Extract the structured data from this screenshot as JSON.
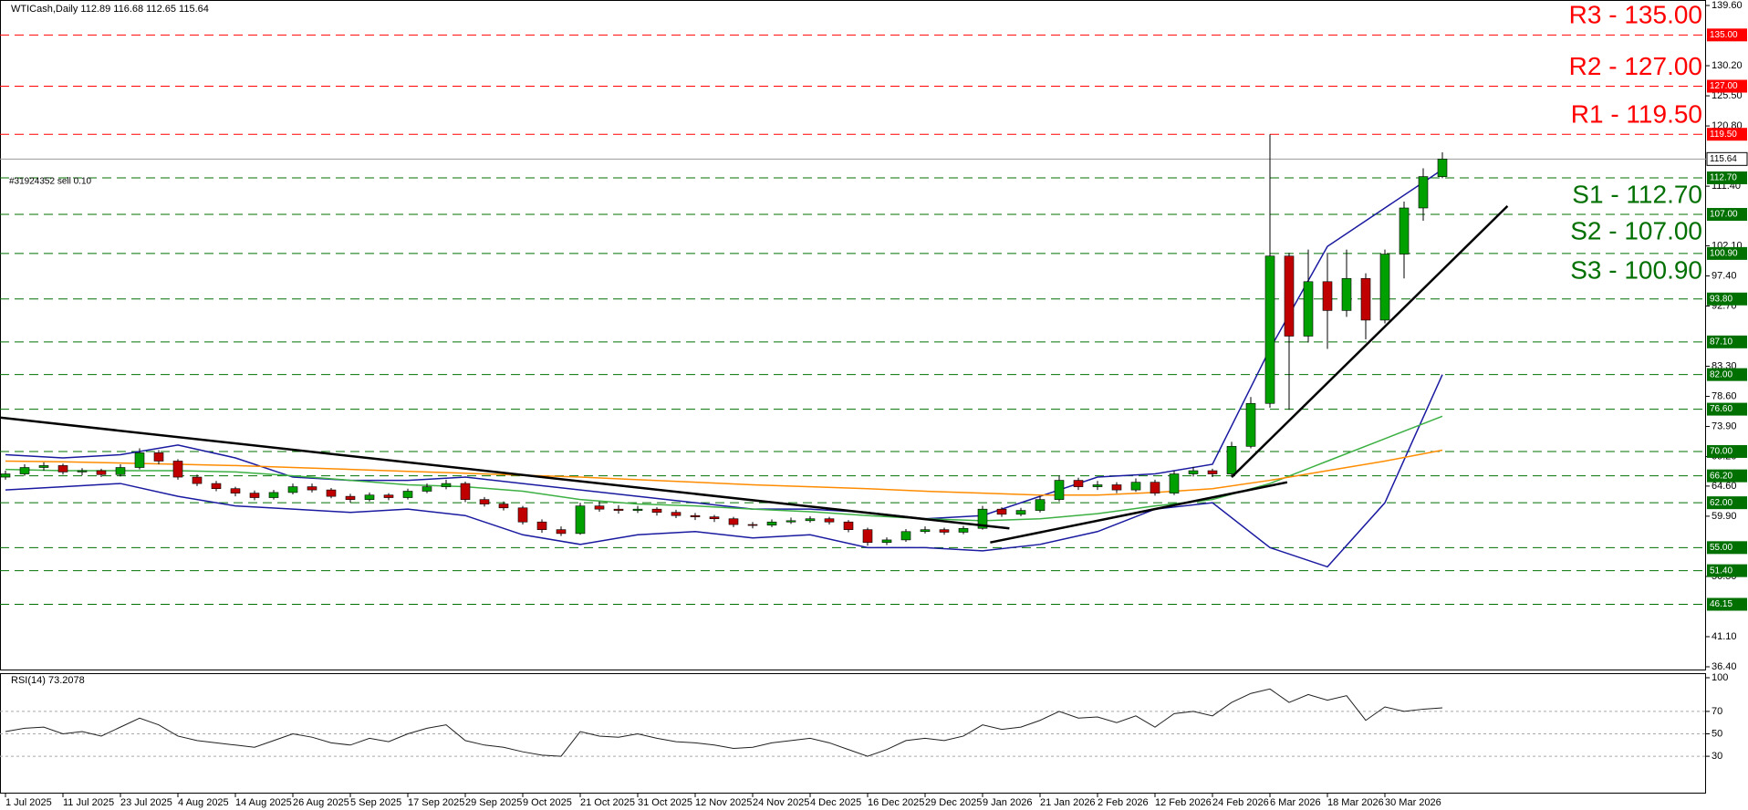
{
  "header": "WTICash,Daily  112.89 116.68 112.65 115.64",
  "chart_data": {
    "type": "candlestick",
    "categories": [
      "1 Jul 2025",
      null,
      null,
      "11 Jul 2025",
      null,
      null,
      "23 Jul 2025",
      null,
      null,
      "4 Aug 2025",
      null,
      null,
      "14 Aug 2025",
      null,
      null,
      "26 Aug 2025",
      null,
      null,
      "5 Sep 2025",
      null,
      null,
      "17 Sep 2025",
      null,
      null,
      "29 Sep 2025",
      null,
      null,
      "9 Oct 2025",
      null,
      null,
      "21 Oct 2025",
      null,
      null,
      "31 Oct 2025",
      null,
      null,
      "12 Nov 2025",
      null,
      null,
      "24 Nov 2025",
      null,
      null,
      "4 Dec 2025",
      null,
      null,
      "16 Dec 2025",
      null,
      null,
      "29 Dec 2025",
      null,
      null,
      "9 Jan 2026",
      null,
      null,
      "21 Jan 2026",
      null,
      null,
      "2 Feb 2026",
      null,
      null,
      "12 Feb 2026",
      null,
      null,
      "24 Feb 2026",
      null,
      null,
      "6 Mar 2026",
      null,
      null,
      "18 Mar 2026",
      null,
      null,
      "30 Mar 2026",
      null,
      null,
      null
    ],
    "ohlc": [
      [
        66.0,
        67.0,
        65.6,
        66.5
      ],
      [
        66.5,
        68.0,
        66.2,
        67.5
      ],
      [
        67.5,
        68.3,
        67.0,
        67.8
      ],
      [
        67.8,
        68.1,
        66.4,
        66.8
      ],
      [
        66.8,
        67.4,
        66.3,
        67.0
      ],
      [
        67.0,
        67.3,
        66.0,
        66.4
      ],
      [
        66.4,
        68.0,
        66.1,
        67.5
      ],
      [
        67.5,
        70.5,
        67.2,
        69.8
      ],
      [
        69.8,
        70.2,
        68.0,
        68.5
      ],
      [
        68.5,
        68.8,
        65.6,
        66.0
      ],
      [
        66.0,
        66.4,
        64.6,
        65.0
      ],
      [
        65.0,
        65.4,
        63.8,
        64.2
      ],
      [
        64.2,
        64.5,
        63.0,
        63.5
      ],
      [
        63.5,
        63.9,
        62.4,
        62.8
      ],
      [
        62.8,
        64.0,
        62.5,
        63.6
      ],
      [
        63.6,
        65.0,
        63.3,
        64.5
      ],
      [
        64.5,
        65.0,
        63.6,
        64.0
      ],
      [
        64.0,
        64.3,
        62.7,
        63.0
      ],
      [
        63.0,
        63.4,
        62.0,
        62.5
      ],
      [
        62.5,
        63.6,
        62.2,
        63.2
      ],
      [
        63.2,
        63.5,
        62.4,
        62.8
      ],
      [
        62.8,
        64.2,
        62.5,
        63.8
      ],
      [
        63.8,
        65.0,
        63.5,
        64.5
      ],
      [
        64.5,
        65.6,
        64.1,
        65.0
      ],
      [
        65.0,
        65.3,
        62.1,
        62.5
      ],
      [
        62.5,
        62.9,
        61.4,
        61.8
      ],
      [
        61.8,
        62.2,
        60.8,
        61.2
      ],
      [
        61.2,
        61.5,
        58.6,
        59.0
      ],
      [
        59.0,
        59.4,
        57.3,
        57.8
      ],
      [
        57.8,
        58.3,
        56.8,
        57.2
      ],
      [
        57.2,
        62.0,
        57.0,
        61.5
      ],
      [
        61.5,
        62.2,
        60.6,
        61.0
      ],
      [
        61.0,
        61.6,
        60.3,
        60.8
      ],
      [
        60.8,
        61.5,
        60.4,
        61.0
      ],
      [
        61.0,
        61.3,
        60.0,
        60.5
      ],
      [
        60.5,
        60.9,
        59.6,
        60.0
      ],
      [
        60.0,
        60.4,
        59.3,
        59.8
      ],
      [
        59.8,
        60.1,
        59.0,
        59.5
      ],
      [
        59.5,
        59.8,
        58.2,
        58.6
      ],
      [
        58.6,
        59.0,
        58.0,
        58.5
      ],
      [
        58.5,
        59.4,
        58.2,
        59.0
      ],
      [
        59.0,
        59.7,
        58.7,
        59.2
      ],
      [
        59.2,
        59.9,
        58.9,
        59.5
      ],
      [
        59.5,
        59.8,
        58.6,
        59.0
      ],
      [
        59.0,
        59.3,
        57.4,
        57.8
      ],
      [
        57.8,
        58.1,
        55.3,
        55.8
      ],
      [
        55.8,
        56.6,
        55.4,
        56.2
      ],
      [
        56.2,
        57.9,
        55.9,
        57.5
      ],
      [
        57.5,
        58.3,
        57.2,
        57.8
      ],
      [
        57.8,
        58.1,
        57.0,
        57.4
      ],
      [
        57.4,
        58.4,
        57.1,
        58.0
      ],
      [
        58.0,
        61.5,
        57.8,
        61.0
      ],
      [
        61.0,
        61.3,
        59.8,
        60.2
      ],
      [
        60.2,
        61.2,
        59.9,
        60.8
      ],
      [
        60.8,
        63.0,
        60.5,
        62.5
      ],
      [
        62.5,
        66.2,
        62.2,
        65.5
      ],
      [
        65.5,
        65.9,
        64.0,
        64.5
      ],
      [
        64.5,
        65.4,
        64.0,
        64.8
      ],
      [
        64.8,
        65.2,
        63.5,
        64.0
      ],
      [
        64.0,
        65.8,
        63.7,
        65.2
      ],
      [
        65.2,
        65.6,
        63.1,
        63.5
      ],
      [
        63.5,
        67.0,
        63.2,
        66.5
      ],
      [
        66.5,
        67.6,
        66.1,
        67.0
      ],
      [
        67.0,
        67.3,
        66.0,
        66.5
      ],
      [
        66.5,
        71.5,
        66.2,
        70.8
      ],
      [
        70.8,
        78.5,
        70.5,
        77.5
      ],
      [
        77.5,
        119.5,
        76.8,
        100.5
      ],
      [
        100.5,
        101.0,
        76.5,
        88.0
      ],
      [
        88.0,
        101.5,
        87.0,
        96.5
      ],
      [
        96.5,
        101.0,
        86.0,
        92.0
      ],
      [
        92.0,
        101.5,
        91.0,
        97.0
      ],
      [
        97.0,
        97.8,
        87.5,
        90.5
      ],
      [
        90.5,
        101.5,
        90.0,
        100.8
      ],
      [
        100.8,
        109.0,
        97.0,
        108.0
      ],
      [
        108.0,
        114.2,
        106.0,
        112.9
      ],
      [
        112.89,
        116.68,
        112.65,
        115.64
      ]
    ],
    "colors": {
      "up": "#00a000",
      "down": "#c00000"
    },
    "ylim": [
      36.4,
      139.6
    ],
    "yticks": [
      {
        "value": 139.6,
        "label": "139.60"
      },
      {
        "value": 130.2,
        "label": "130.20"
      },
      {
        "value": 125.5,
        "label": "125.50"
      },
      {
        "value": 120.8,
        "label": "120.80"
      },
      {
        "value": 111.4,
        "label": "111.40"
      },
      {
        "value": 102.1,
        "label": "102.10"
      },
      {
        "value": 97.4,
        "label": "97.40"
      },
      {
        "value": 92.7,
        "label": "92.70"
      },
      {
        "value": 83.3,
        "label": "83.30"
      },
      {
        "value": 78.6,
        "label": "78.60"
      },
      {
        "value": 73.9,
        "label": "73.90"
      },
      {
        "value": 69.2,
        "label": "69.20"
      },
      {
        "value": 64.6,
        "label": "64.60"
      },
      {
        "value": 59.9,
        "label": "59.90"
      },
      {
        "value": 50.5,
        "label": "50.50"
      },
      {
        "value": 41.1,
        "label": "41.10"
      },
      {
        "value": 36.4,
        "label": "36.40"
      }
    ],
    "levels": [
      {
        "value": 135,
        "label": "135.00",
        "color": "#ff0000",
        "text": "R3 - 135.00"
      },
      {
        "value": 127,
        "label": "127.00",
        "color": "#ff0000",
        "text": "R2 - 127.00"
      },
      {
        "value": 119.5,
        "label": "119.50",
        "color": "#ff0000",
        "text": "R1 - 119.50"
      },
      {
        "value": 112.7,
        "label": "112.70",
        "color": "#007000",
        "text": "S1 - 112.70"
      },
      {
        "value": 107,
        "label": "107.00",
        "color": "#007000",
        "text": "S2 - 107.00"
      },
      {
        "value": 100.9,
        "label": "100.90",
        "color": "#007000",
        "text": "S3 - 100.90"
      },
      {
        "value": 93.8,
        "label": "93.80",
        "color": "#007000"
      },
      {
        "value": 87.1,
        "label": "87.10",
        "color": "#007000"
      },
      {
        "value": 82,
        "label": "82.00",
        "color": "#007000"
      },
      {
        "value": 76.6,
        "label": "76.60",
        "color": "#007000"
      },
      {
        "value": 70,
        "label": "70.00",
        "color": "#007000"
      },
      {
        "value": 66.2,
        "label": "66.20",
        "color": "#007000"
      },
      {
        "value": 62,
        "label": "62.00",
        "color": "#007000"
      },
      {
        "value": 55,
        "label": "55.00",
        "color": "#007000"
      },
      {
        "value": 51.4,
        "label": "51.40",
        "color": "#007000"
      },
      {
        "value": 46.15,
        "label": "46.15",
        "color": "#007000"
      }
    ],
    "current": {
      "value": 115.64,
      "label": "115.64"
    },
    "order_label": "#31924352 sell 0.10",
    "indicators": {
      "x": [
        0,
        3,
        6,
        9,
        12,
        15,
        18,
        21,
        24,
        27,
        30,
        33,
        36,
        39,
        42,
        45,
        48,
        51,
        54,
        57,
        60,
        63,
        66,
        69,
        72,
        75
      ],
      "series": [
        {
          "color": "#1a1aa0",
          "values": [
            69.5,
            69,
            69.5,
            71,
            69,
            66,
            65.5,
            65.5,
            66,
            65,
            64,
            63,
            62,
            61,
            61,
            60.5,
            59.5,
            60,
            63,
            66,
            66.5,
            68,
            86,
            102,
            108,
            114
          ]
        },
        {
          "color": "#1a1aa0",
          "values": [
            64,
            64.5,
            65,
            63,
            61.5,
            61,
            60.5,
            61,
            60,
            57,
            55.5,
            57,
            57.5,
            56.5,
            57,
            55,
            55,
            54.5,
            55.5,
            57.5,
            61,
            62,
            55,
            52,
            62,
            82
          ]
        },
        {
          "color": "#3cb043",
          "values": [
            67.2,
            67,
            67,
            67,
            66.8,
            66.2,
            65.5,
            64.8,
            64.5,
            63.8,
            62.5,
            61.8,
            61.5,
            61,
            60.6,
            60,
            59.5,
            59.2,
            59.5,
            60.3,
            61.5,
            62.5,
            65,
            68.5,
            72,
            75.5
          ]
        },
        {
          "color": "#ff8c00",
          "values": [
            68.5,
            68.4,
            68.2,
            68.0,
            67.8,
            67.5,
            67.2,
            66.9,
            66.6,
            66.3,
            66.0,
            65.6,
            65.2,
            64.8,
            64.5,
            64.2,
            63.8,
            63.5,
            63.2,
            63.2,
            63.6,
            64.2,
            65.5,
            67.0,
            68.5,
            70.2
          ]
        }
      ]
    },
    "trendlines": [
      {
        "x": [
          -0.3,
          52.4
        ],
        "y": [
          75.3,
          58.0
        ]
      },
      {
        "x": [
          51.4,
          66.9
        ],
        "y": [
          55.8,
          65.2
        ]
      },
      {
        "x": [
          64,
          78.4
        ],
        "y": [
          66,
          108.3
        ]
      }
    ],
    "rsi": {
      "title": "RSI(14) 73.2078",
      "color": "#202020",
      "ylim": [
        0,
        100
      ],
      "yticks": [
        100,
        70,
        50,
        30
      ],
      "levels": [
        70,
        50,
        30
      ],
      "values": [
        52,
        55,
        56,
        50,
        52,
        48,
        56,
        64,
        58,
        48,
        44,
        42,
        40,
        38,
        44,
        50,
        47,
        42,
        40,
        46,
        43,
        50,
        55,
        58,
        44,
        40,
        38,
        34,
        31,
        30,
        52,
        48,
        47,
        50,
        46,
        43,
        42,
        40,
        37,
        38,
        42,
        44,
        46,
        42,
        36,
        30,
        36,
        44,
        46,
        44,
        48,
        58,
        54,
        56,
        62,
        70,
        64,
        65,
        60,
        66,
        56,
        68,
        70,
        66,
        78,
        86,
        90,
        78,
        85,
        80,
        84,
        62,
        74,
        70,
        72,
        73.2078
      ]
    }
  }
}
